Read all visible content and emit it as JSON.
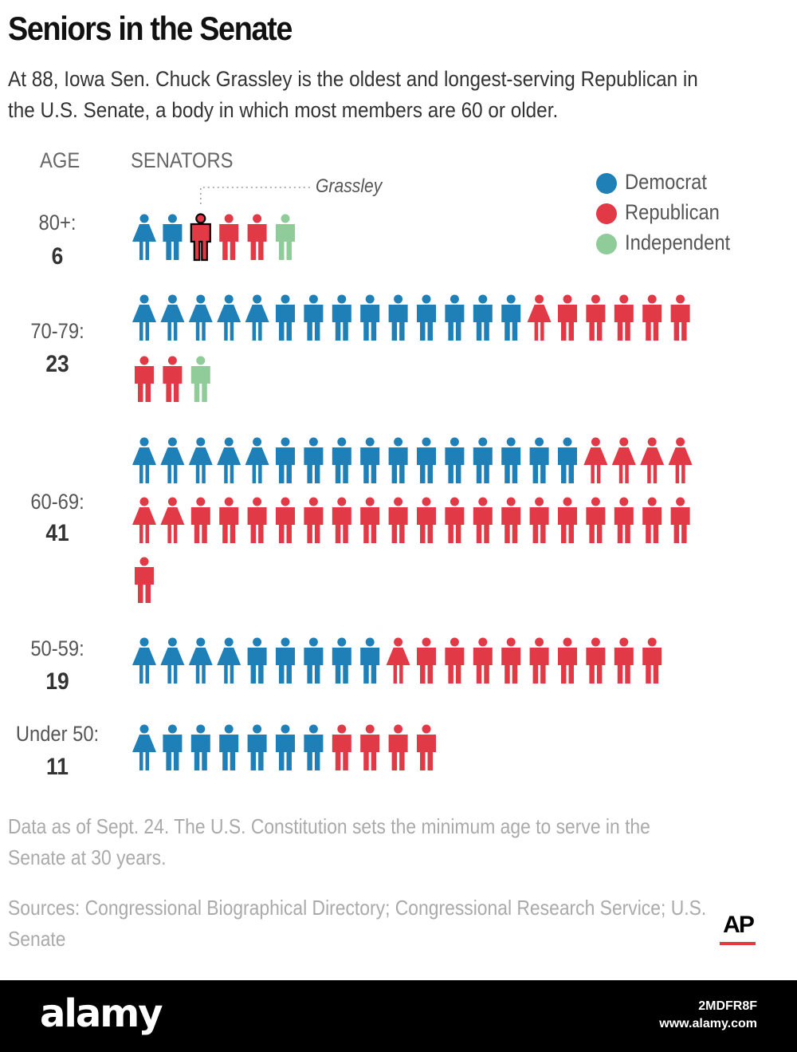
{
  "chart_data": {
    "type": "pictograph",
    "title": "Seniors in the Senate",
    "subtitle": "At 88, Iowa Sen. Chuck Grassley is the oldest and longest-serving Republican in the U.S. Senate, a body in which most members are 60 or older.",
    "column_headers": {
      "age": "AGE",
      "senators": "SENATORS"
    },
    "legend": [
      {
        "label": "Democrat",
        "color": "#1f80b8"
      },
      {
        "label": "Republican",
        "color": "#e23947"
      },
      {
        "label": "Independent",
        "color": "#8fcc9a"
      }
    ],
    "annotation": {
      "label": "Grassley",
      "group": "80+:",
      "position_in_group": 3
    },
    "groups": [
      {
        "label": "80+:",
        "count": "6",
        "rows": [
          [
            "D-f",
            "D-m",
            "R-m-h",
            "R-m",
            "R-m",
            "I-m"
          ]
        ]
      },
      {
        "label": "70-79:",
        "count": "23",
        "rows": [
          [
            "D-f",
            "D-f",
            "D-f",
            "D-f",
            "D-f",
            "D-m",
            "D-m",
            "D-m",
            "D-m",
            "D-m",
            "D-m",
            "D-m",
            "D-m",
            "D-m",
            "R-f",
            "R-m",
            "R-m",
            "R-m",
            "R-m",
            "R-m"
          ],
          [
            "R-m",
            "R-m",
            "I-m"
          ]
        ]
      },
      {
        "label": "60-69:",
        "count": "41",
        "rows": [
          [
            "D-f",
            "D-f",
            "D-f",
            "D-f",
            "D-f",
            "D-m",
            "D-m",
            "D-m",
            "D-m",
            "D-m",
            "D-m",
            "D-m",
            "D-m",
            "D-m",
            "D-m",
            "D-m",
            "R-f",
            "R-f",
            "R-f",
            "R-f"
          ],
          [
            "R-f",
            "R-f",
            "R-m",
            "R-m",
            "R-m",
            "R-m",
            "R-m",
            "R-m",
            "R-m",
            "R-m",
            "R-m",
            "R-m",
            "R-m",
            "R-m",
            "R-m",
            "R-m",
            "R-m",
            "R-m",
            "R-m",
            "R-m"
          ],
          [
            "R-m"
          ]
        ]
      },
      {
        "label": "50-59:",
        "count": "19",
        "rows": [
          [
            "D-f",
            "D-f",
            "D-f",
            "D-f",
            "D-m",
            "D-m",
            "D-m",
            "D-m",
            "D-m",
            "R-f",
            "R-m",
            "R-m",
            "R-m",
            "R-m",
            "R-m",
            "R-m",
            "R-m",
            "R-m",
            "R-m"
          ]
        ]
      },
      {
        "label": "Under 50:",
        "count": "11",
        "rows": [
          [
            "D-f",
            "D-m",
            "D-m",
            "D-m",
            "D-m",
            "D-m",
            "D-m",
            "R-m",
            "R-m",
            "R-m",
            "R-m"
          ]
        ]
      }
    ]
  },
  "notes": {
    "data_note": "Data as of Sept. 24. The U.S. Constitution sets the minimum age to serve in the Senate at 30 years.",
    "sources": "Sources: Congressional Biographical Directory; Congressional Research Service; U.S. Senate"
  },
  "branding": {
    "logo": "AP",
    "watermark_logo": "alamy",
    "image_id": "2MDFR8F",
    "url": "www.alamy.com"
  }
}
